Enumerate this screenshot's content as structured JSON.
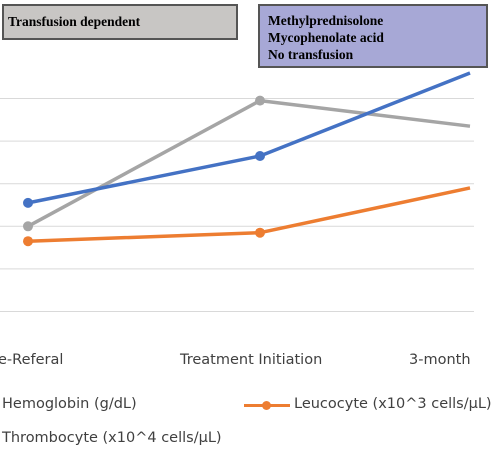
{
  "annotations": {
    "phase_1": "Transfusion dependent",
    "phase_2_lines": [
      "Methylprednisolone",
      "Mycophenolate acid",
      "No transfusion"
    ]
  },
  "chart_data": {
    "type": "line",
    "categories": [
      "e-Referal",
      "Treatment Initiation",
      "3-month"
    ],
    "series": [
      {
        "name": "Hemoglobin (g/dL)",
        "color": "#4472c4",
        "values": [
          5.1,
          7.3,
          11.2
        ]
      },
      {
        "name": "Leucocyte (x10^3 cells/µL)",
        "color": "#ed7d31",
        "values": [
          3.3,
          3.7,
          5.8
        ]
      },
      {
        "name": "Thrombocyte (x10^4 cells/µL)",
        "color": "#a5a5a5",
        "values": [
          4.0,
          9.9,
          8.7
        ]
      }
    ],
    "ylim": [
      -3,
      14
    ],
    "grid": true,
    "legend_position": "bottom"
  }
}
